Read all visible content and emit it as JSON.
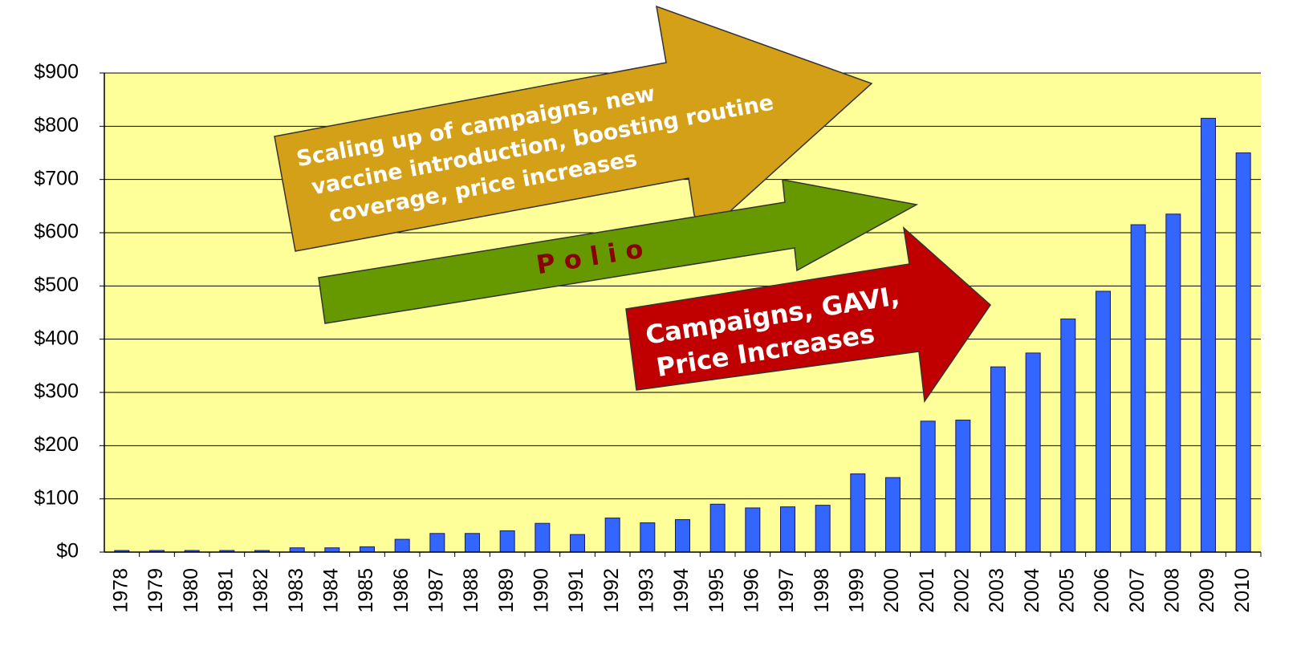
{
  "chart_data": {
    "type": "bar",
    "categories": [
      "1978",
      "1979",
      "1980",
      "1981",
      "1982",
      "1983",
      "1984",
      "1985",
      "1986",
      "1987",
      "1988",
      "1989",
      "1990",
      "1991",
      "1992",
      "1993",
      "1994",
      "1995",
      "1996",
      "1997",
      "1998",
      "1999",
      "2000",
      "2001",
      "2002",
      "2003",
      "2004",
      "2005",
      "2006",
      "2007",
      "2008",
      "2009",
      "2010"
    ],
    "values": [
      3,
      3,
      3,
      3,
      3,
      8,
      8,
      10,
      24,
      35,
      35,
      40,
      54,
      33,
      64,
      55,
      61,
      90,
      83,
      85,
      88,
      147,
      140,
      246,
      248,
      348,
      374,
      438,
      490,
      615,
      635,
      815,
      750
    ],
    "color": "#3366ff",
    "ylim": [
      0,
      900
    ],
    "yticks": [
      {
        "value": 0,
        "label": "$0"
      },
      {
        "value": 100,
        "label": "$100"
      },
      {
        "value": 200,
        "label": "$200"
      },
      {
        "value": 300,
        "label": "$300"
      },
      {
        "value": 400,
        "label": "$400"
      },
      {
        "value": 500,
        "label": "$500"
      },
      {
        "value": 600,
        "label": "$600"
      },
      {
        "value": 700,
        "label": "$700"
      },
      {
        "value": 800,
        "label": "$800"
      },
      {
        "value": 900,
        "label": "$900"
      }
    ],
    "grid": true,
    "annotations": [
      {
        "lines": [
          "Scaling up of campaigns, new",
          "vaccine introduction, boosting routine",
          "coverage, price increases"
        ]
      },
      {
        "lines": [
          "P o l i o"
        ]
      },
      {
        "lines": [
          "Campaigns, GAVI,",
          "Price Increases"
        ]
      }
    ]
  }
}
